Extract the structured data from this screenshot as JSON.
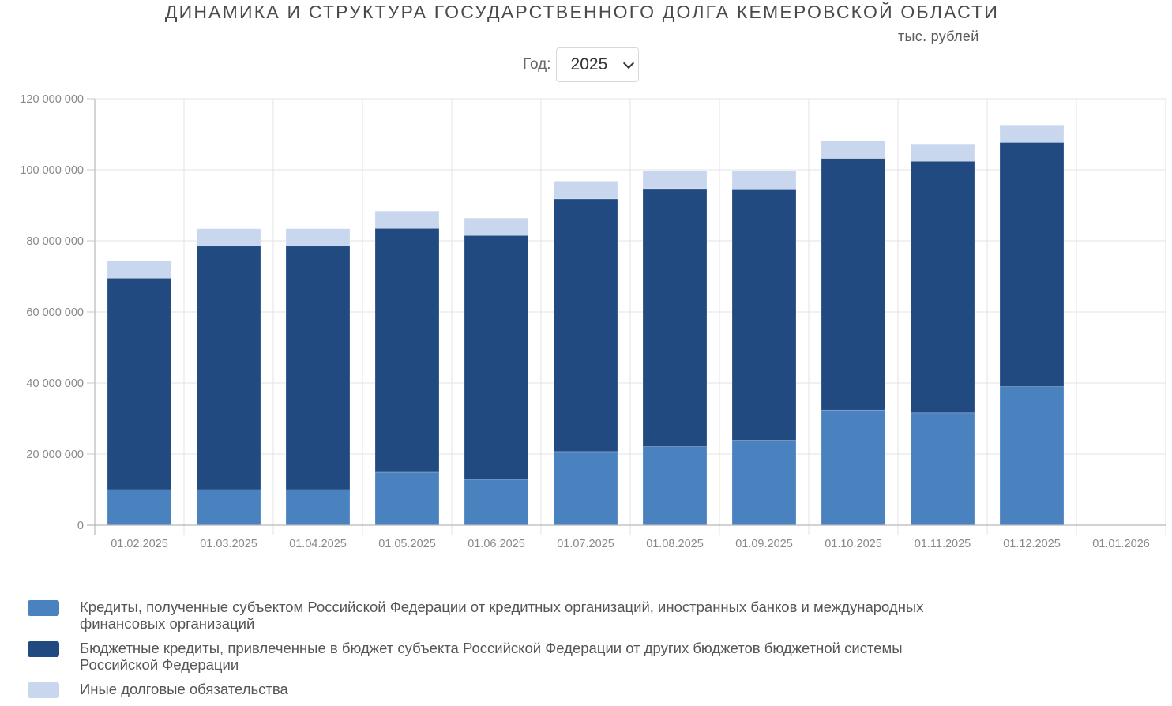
{
  "header": {
    "title": "ДИНАМИКА И СТРУКТУРА ГОСУДАРСТВЕННОГО ДОЛГА КЕМЕРОВСКОЙ ОБЛАСТИ",
    "units": "тыс. рублей",
    "year_label": "Год:",
    "year_selected": "2025",
    "year_select_icon": "chevron-down-icon"
  },
  "chart_data": {
    "type": "bar",
    "stacked": true,
    "title": "ДИНАМИКА И СТРУКТУРА ГОСУДАРСТВЕННОГО ДОЛГА КЕМЕРОВСКОЙ ОБЛАСТИ",
    "xlabel": "",
    "ylabel": "тыс. рублей",
    "ylim": [
      0,
      120000000
    ],
    "yticks": [
      0,
      20000000,
      40000000,
      60000000,
      80000000,
      100000000,
      120000000
    ],
    "ytick_labels": [
      "0",
      "20 000 000",
      "40 000 000",
      "60 000 000",
      "80 000 000",
      "100 000 000",
      "120 000 000"
    ],
    "grid": true,
    "legend_position": "bottom-left",
    "categories": [
      "01.02.2025",
      "01.03.2025",
      "01.04.2025",
      "01.05.2025",
      "01.06.2025",
      "01.07.2025",
      "01.08.2025",
      "01.09.2025",
      "01.10.2025",
      "01.11.2025",
      "01.12.2025",
      "01.01.2026"
    ],
    "series": [
      {
        "name": "Кредиты, полученные субъектом Российской Федерации от кредитных организаций, иностранных банков и международных финансовых организаций",
        "color": "#4a82c0",
        "values": [
          10000000,
          10000000,
          10000000,
          14900000,
          12900000,
          20700000,
          22100000,
          23900000,
          32400000,
          31600000,
          39000000,
          null
        ]
      },
      {
        "name": "Бюджетные кредиты, привлеченные в бюджет субъекта Российской Федерации от других бюджетов бюджетной системы Российской Федерации",
        "color": "#214a80",
        "values": [
          59500000,
          68500000,
          68500000,
          68600000,
          68600000,
          71100000,
          72600000,
          70700000,
          70800000,
          70800000,
          68700000,
          null
        ]
      },
      {
        "name": "Иные долговые обязательства",
        "color": "#c9d7ee",
        "values": [
          4800000,
          4900000,
          4900000,
          4900000,
          4900000,
          5000000,
          4900000,
          5000000,
          4900000,
          4900000,
          4900000,
          null
        ]
      }
    ]
  }
}
